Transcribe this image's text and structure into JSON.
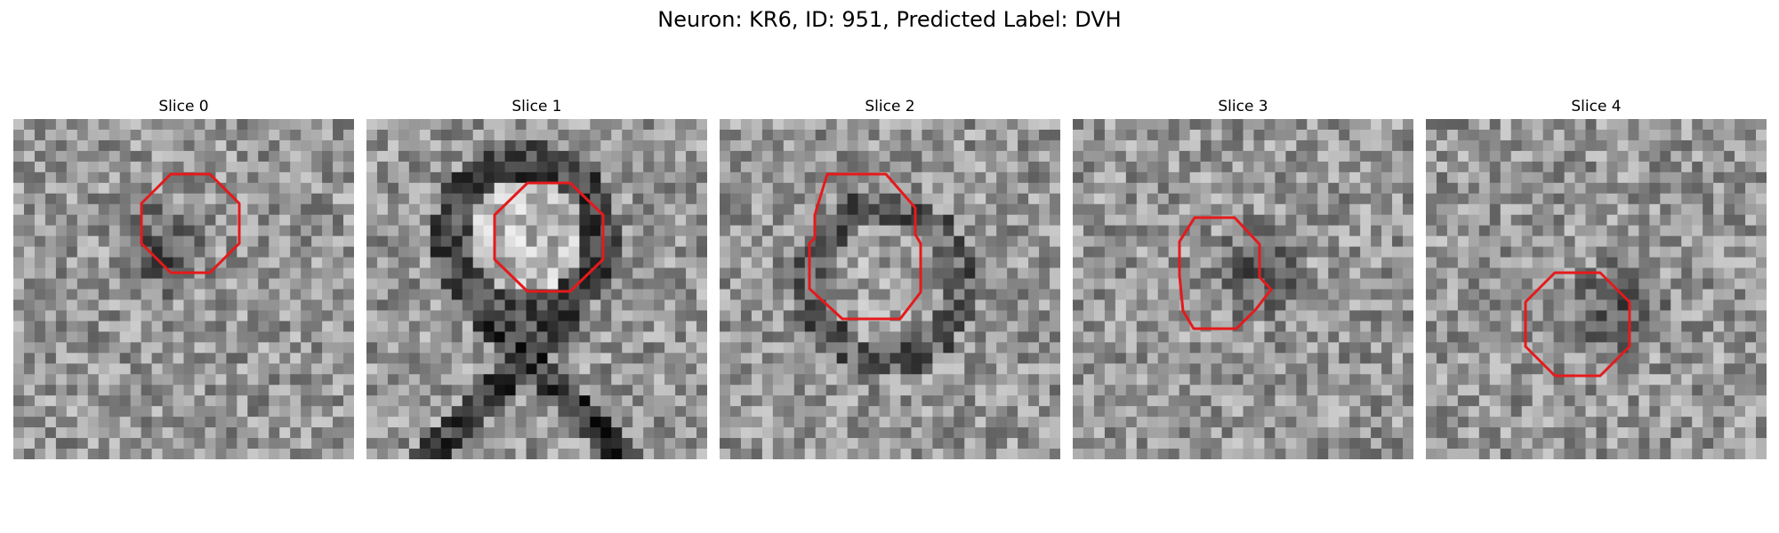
{
  "figure": {
    "title": "Neuron: KR6, ID: 951, Predicted Label: DVH",
    "outline_color": "#e41a1c"
  },
  "panels": [
    {
      "title": "Slice 0",
      "pattern": "dark-blob",
      "seed": 11
    },
    {
      "title": "Slice 1",
      "pattern": "ring-cross",
      "seed": 23
    },
    {
      "title": "Slice 2",
      "pattern": "ring",
      "seed": 37
    },
    {
      "title": "Slice 3",
      "pattern": "dark-blob",
      "seed": 53
    },
    {
      "title": "Slice 4",
      "pattern": "dark-blob",
      "seed": 71
    }
  ]
}
